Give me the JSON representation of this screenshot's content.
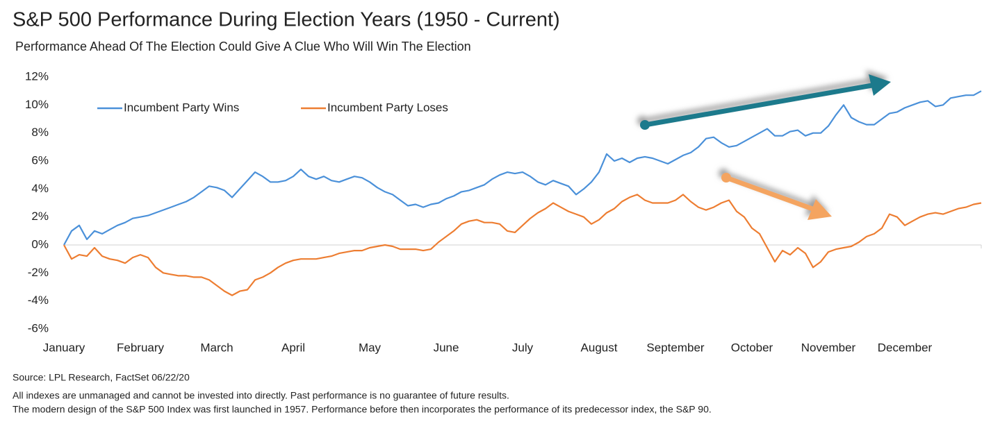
{
  "chart_data": {
    "type": "line",
    "title": "S&P 500 Performance During Election Years (1950 - Current)",
    "subtitle": "Performance Ahead Of The Election Could Give A Clue Who Will Win The Election",
    "source": "Source: LPL Research, FactSet 06/22/20",
    "notes": [
      "All indexes are unmanaged  and cannot be invested into directly. Past performance is no guarantee of future results.",
      "The modern design of the S&P 500 Index was first launched in 1957. Performance before then incorporates the performance of its  predecessor index, the S&P 90."
    ],
    "categories": [
      "January",
      null,
      null,
      null,
      null,
      null,
      null,
      null,
      null,
      null,
      "February",
      null,
      null,
      null,
      null,
      null,
      null,
      null,
      null,
      null,
      "March",
      null,
      null,
      null,
      null,
      null,
      null,
      null,
      null,
      null,
      "April",
      null,
      null,
      null,
      null,
      null,
      null,
      null,
      null,
      null,
      "May",
      null,
      null,
      null,
      null,
      null,
      null,
      null,
      null,
      null,
      "June",
      null,
      null,
      null,
      null,
      null,
      null,
      null,
      null,
      null,
      "July",
      null,
      null,
      null,
      null,
      null,
      null,
      null,
      null,
      null,
      "August",
      null,
      null,
      null,
      null,
      null,
      null,
      null,
      null,
      null,
      "September",
      null,
      null,
      null,
      null,
      null,
      null,
      null,
      null,
      null,
      "October",
      null,
      null,
      null,
      null,
      null,
      null,
      null,
      null,
      null,
      "November",
      null,
      null,
      null,
      null,
      null,
      null,
      null,
      null,
      null,
      "December",
      null,
      null,
      null,
      null,
      null,
      null,
      null,
      null,
      null,
      null
    ],
    "series": [
      {
        "name": "Incumbent Party Wins",
        "color": "#4a90d9",
        "values": [
          0,
          1.0,
          1.4,
          0.4,
          1.0,
          0.8,
          1.1,
          1.4,
          1.6,
          1.9,
          2.0,
          2.1,
          2.3,
          2.5,
          2.7,
          2.9,
          3.1,
          3.4,
          3.8,
          4.2,
          4.1,
          3.9,
          3.4,
          4.0,
          4.6,
          5.2,
          4.9,
          4.5,
          4.5,
          4.6,
          4.9,
          5.4,
          4.9,
          4.7,
          4.9,
          4.6,
          4.5,
          4.7,
          4.9,
          4.8,
          4.5,
          4.1,
          3.8,
          3.6,
          3.2,
          2.8,
          2.9,
          2.7,
          2.9,
          3.0,
          3.3,
          3.5,
          3.8,
          3.9,
          4.1,
          4.3,
          4.7,
          5.0,
          5.2,
          5.1,
          5.2,
          4.9,
          4.5,
          4.3,
          4.6,
          4.4,
          4.2,
          3.6,
          4.0,
          4.5,
          5.2,
          6.5,
          6.0,
          6.2,
          5.9,
          6.2,
          6.3,
          6.2,
          6.0,
          5.8,
          6.1,
          6.4,
          6.6,
          7.0,
          7.6,
          7.7,
          7.3,
          7.0,
          7.1,
          7.4,
          7.7,
          8.0,
          8.3,
          7.8,
          7.8,
          8.1,
          8.2,
          7.8,
          8.0,
          8.0,
          8.5,
          9.3,
          10.0,
          9.1,
          8.8,
          8.6,
          8.6,
          9.0,
          9.4,
          9.5,
          9.8,
          10.0,
          10.2,
          10.3,
          9.9,
          10.0,
          10.5,
          10.6,
          10.7,
          10.7,
          11.0
        ]
      },
      {
        "name": "Incumbent Party Loses",
        "color": "#ed7d31",
        "values": [
          0,
          -1.0,
          -0.7,
          -0.8,
          -0.2,
          -0.8,
          -1.0,
          -1.1,
          -1.3,
          -0.9,
          -0.7,
          -0.9,
          -1.6,
          -2.0,
          -2.1,
          -2.2,
          -2.2,
          -2.3,
          -2.3,
          -2.5,
          -2.9,
          -3.3,
          -3.6,
          -3.3,
          -3.2,
          -2.5,
          -2.3,
          -2.0,
          -1.6,
          -1.3,
          -1.1,
          -1.0,
          -1.0,
          -1.0,
          -0.9,
          -0.8,
          -0.6,
          -0.5,
          -0.4,
          -0.4,
          -0.2,
          -0.1,
          0.0,
          -0.1,
          -0.3,
          -0.3,
          -0.3,
          -0.4,
          -0.3,
          0.2,
          0.6,
          1.0,
          1.5,
          1.7,
          1.8,
          1.6,
          1.6,
          1.5,
          1.0,
          0.9,
          1.4,
          1.9,
          2.3,
          2.6,
          3.0,
          2.7,
          2.4,
          2.2,
          2.0,
          1.5,
          1.8,
          2.3,
          2.6,
          3.1,
          3.4,
          3.6,
          3.2,
          3.0,
          3.0,
          3.0,
          3.2,
          3.6,
          3.1,
          2.7,
          2.5,
          2.7,
          3.0,
          3.2,
          2.4,
          2.0,
          1.2,
          0.8,
          -0.2,
          -1.2,
          -0.4,
          -0.7,
          -0.2,
          -0.6,
          -1.6,
          -1.2,
          -0.5,
          -0.3,
          -0.2,
          -0.1,
          0.2,
          0.6,
          0.8,
          1.2,
          2.2,
          2.0,
          1.4,
          1.7,
          2.0,
          2.2,
          2.3,
          2.2,
          2.4,
          2.6,
          2.7,
          2.9,
          3.0
        ]
      }
    ],
    "ylim": [
      -6,
      12
    ],
    "yticks": [
      {
        "value": -6,
        "label": "-6%"
      },
      {
        "value": -4,
        "label": "-4%"
      },
      {
        "value": -2,
        "label": "-2%"
      },
      {
        "value": 0,
        "label": "0%"
      },
      {
        "value": 2,
        "label": "2%"
      },
      {
        "value": 4,
        "label": "4%"
      },
      {
        "value": 6,
        "label": "6%"
      },
      {
        "value": 8,
        "label": "8%"
      },
      {
        "value": 10,
        "label": "10%"
      },
      {
        "value": 12,
        "label": "12%"
      }
    ],
    "grid": false,
    "legend": "top-left"
  }
}
